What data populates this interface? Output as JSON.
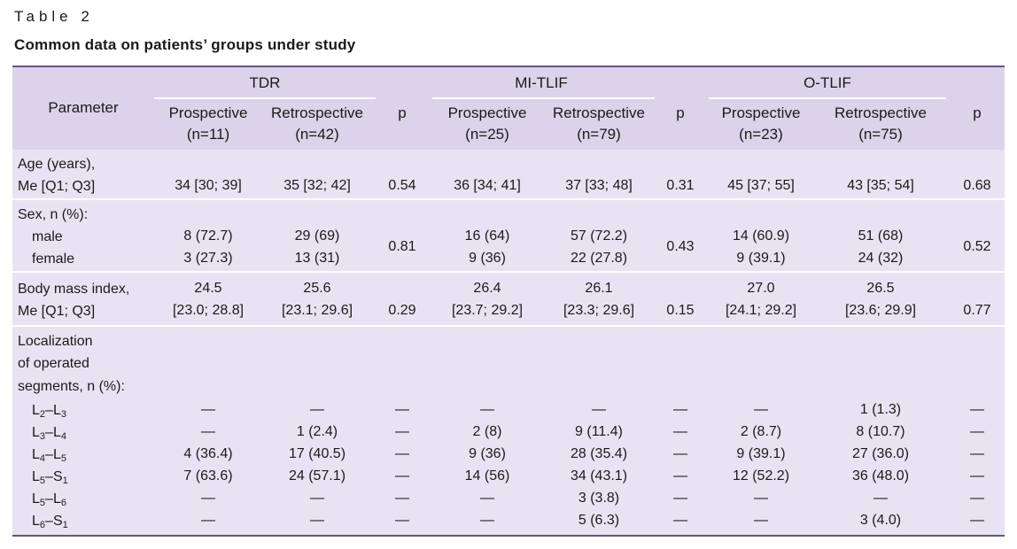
{
  "caption": "Table 2",
  "title": "Common data on patients’ groups under study",
  "header": {
    "parameter": "Parameter",
    "groups": [
      "TDR",
      "MI-TLIF",
      "O-TLIF"
    ],
    "p": "p",
    "cols": [
      {
        "name": "Prospective",
        "n": "(n=11)"
      },
      {
        "name": "Retrospective",
        "n": "(n=42)"
      },
      {
        "name": "Prospective",
        "n": "(n=25)"
      },
      {
        "name": "Retrospective",
        "n": "(n=79)"
      },
      {
        "name": "Prospective",
        "n": "(n=23)"
      },
      {
        "name": "Retrospective",
        "n": "(n=75)"
      }
    ]
  },
  "age": {
    "label1": "Age (years),",
    "label2": "Me [Q1; Q3]",
    "vals": [
      "34 [30; 39]",
      "35 [32; 42]",
      "0.54",
      "36 [34; 41]",
      "37 [33; 48]",
      "0.31",
      "45 [37; 55]",
      "43 [35; 54]",
      "0.68"
    ]
  },
  "sex": {
    "label": "Sex, n (%):",
    "male": "male",
    "female": "female",
    "male_vals": [
      "8 (72.7)",
      "29 (69)",
      "16 (64)",
      "57 (72.2)",
      "14 (60.9)",
      "51 (68)"
    ],
    "female_vals": [
      "3 (27.3)",
      "13 (31)",
      "9 (36)",
      "22 (27.8)",
      "9 (39.1)",
      "24 (32)"
    ],
    "p": [
      "0.81",
      "0.43",
      "0.52"
    ]
  },
  "bmi": {
    "label1": "Body mass index,",
    "label2": "Me [Q1; Q3]",
    "med": [
      "24.5",
      "25.6",
      "26.4",
      "26.1",
      "27.0",
      "26.5"
    ],
    "iqr": [
      "[23.0; 28.8]",
      "[23.1; 29.6]",
      "[23.7; 29.2]",
      "[23.3; 29.6]",
      "[24.1; 29.2]",
      "[23.6; 29.9]"
    ],
    "p": [
      "0.29",
      "0.15",
      "0.77"
    ]
  },
  "loc": {
    "label": [
      "Localization",
      "of operated",
      "segments, n (%):"
    ],
    "rows": [
      {
        "a": "L",
        "as": "2",
        "b": "L",
        "bs": "3",
        "vals": [
          "—",
          "—",
          "—",
          "—",
          "—",
          "—",
          "—",
          "1 (1.3)",
          "—"
        ]
      },
      {
        "a": "L",
        "as": "3",
        "b": "L",
        "bs": "4",
        "vals": [
          "—",
          "1 (2.4)",
          "—",
          "2 (8)",
          "9 (11.4)",
          "—",
          "2 (8.7)",
          "8 (10.7)",
          "—"
        ]
      },
      {
        "a": "L",
        "as": "4",
        "b": "L",
        "bs": "5",
        "vals": [
          "4 (36.4)",
          "17 (40.5)",
          "—",
          "9 (36)",
          "28 (35.4)",
          "—",
          "9 (39.1)",
          "27 (36.0)",
          "—"
        ]
      },
      {
        "a": "L",
        "as": "5",
        "b": "S",
        "bs": "1",
        "vals": [
          "7 (63.6)",
          "24 (57.1)",
          "—",
          "14 (56)",
          "34 (43.1)",
          "—",
          "12 (52.2)",
          "36 (48.0)",
          "—"
        ]
      },
      {
        "a": "L",
        "as": "5",
        "b": "L",
        "bs": "6",
        "vals": [
          "—",
          "—",
          "—",
          "—",
          "3 (3.8)",
          "—",
          "—",
          "—",
          "—"
        ]
      },
      {
        "a": "L",
        "as": "6",
        "b": "S",
        "bs": "1",
        "vals": [
          "—",
          "—",
          "—",
          "—",
          "5 (6.3)",
          "—",
          "—",
          "3 (4.0)",
          "—"
        ]
      }
    ]
  }
}
